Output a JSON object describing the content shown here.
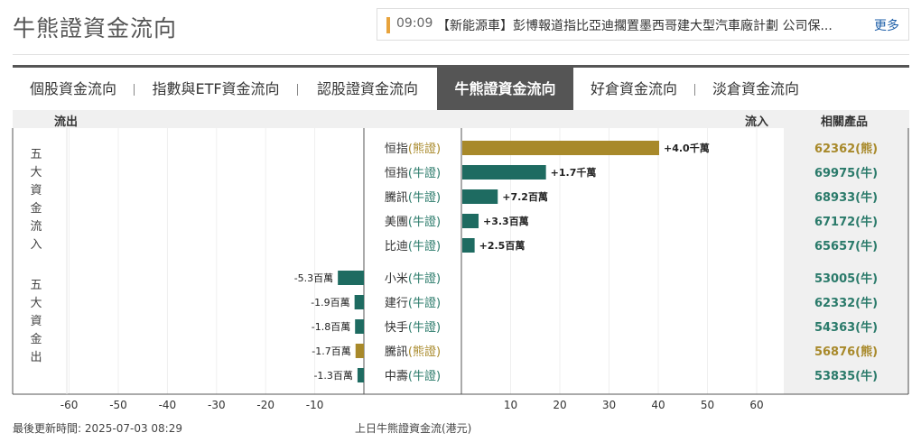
{
  "page_title": "牛熊證資金流向",
  "ticker": {
    "time": "09:09",
    "text": "【新能源車】彭博報道指比亞迪擱置墨西哥建大型汽車廠計劃 公司保...",
    "more_label": "更多"
  },
  "tabs": [
    {
      "label": "個股資金流向",
      "active": false
    },
    {
      "label": "指數與ETF資金流向",
      "active": false
    },
    {
      "label": "認股證資金流向",
      "active": false
    },
    {
      "label": "牛熊證資金流向",
      "active": true
    },
    {
      "label": "好倉資金流向",
      "active": false
    },
    {
      "label": "淡倉資金流向",
      "active": false
    }
  ],
  "header": {
    "outflow_label": "流出",
    "inflow_label": "流入",
    "products_label": "相關產品"
  },
  "group_labels": {
    "inflow": "五大資金流入",
    "outflow": "五大資金出"
  },
  "colors": {
    "bull": "#1e6b61",
    "bear": "#a8892a",
    "bear_text": "#a8892a",
    "bull_text": "#2a7a6a",
    "tab_active": "#555555"
  },
  "chart_data": {
    "type": "bar",
    "orientation": "horizontal",
    "x_ticks": [
      -60,
      -50,
      -40,
      -30,
      -20,
      -10,
      10,
      20,
      30,
      40,
      50,
      60
    ],
    "xlabel": "上日牛熊證資金流(港元)",
    "xlim": [
      -60,
      60
    ],
    "unit_note": "values in 百萬 (HKD millions)",
    "rows": [
      {
        "name": "恒指",
        "type_label": "(熊證)",
        "kind": "bear",
        "value": 40,
        "label": "+4.0千萬",
        "product": "62362(熊)"
      },
      {
        "name": "恒指",
        "type_label": "(牛證)",
        "kind": "bull",
        "value": 17,
        "label": "+1.7千萬",
        "product": "69975(牛)"
      },
      {
        "name": "騰訊",
        "type_label": "(牛證)",
        "kind": "bull",
        "value": 7.2,
        "label": "+7.2百萬",
        "product": "68933(牛)"
      },
      {
        "name": "美團",
        "type_label": "(牛證)",
        "kind": "bull",
        "value": 3.3,
        "label": "+3.3百萬",
        "product": "67172(牛)"
      },
      {
        "name": "比迪",
        "type_label": "(牛證)",
        "kind": "bull",
        "value": 2.5,
        "label": "+2.5百萬",
        "product": "65657(牛)"
      },
      {
        "name": "小米",
        "type_label": "(牛證)",
        "kind": "bull",
        "value": -5.3,
        "label": "-5.3百萬",
        "product": "53005(牛)"
      },
      {
        "name": "建行",
        "type_label": "(牛證)",
        "kind": "bull",
        "value": -1.9,
        "label": "-1.9百萬",
        "product": "62332(牛)"
      },
      {
        "name": "快手",
        "type_label": "(牛證)",
        "kind": "bull",
        "value": -1.8,
        "label": "-1.8百萬",
        "product": "54363(牛)"
      },
      {
        "name": "騰訊",
        "type_label": "(熊證)",
        "kind": "bear",
        "value": -1.7,
        "label": "-1.7百萬",
        "product": "56876(熊)"
      },
      {
        "name": "中壽",
        "type_label": "(牛證)",
        "kind": "bull",
        "value": -1.3,
        "label": "-1.3百萬",
        "product": "53835(牛)"
      }
    ]
  },
  "footer": {
    "last_update": "最後更新時間: 2025-07-03 08:29"
  }
}
